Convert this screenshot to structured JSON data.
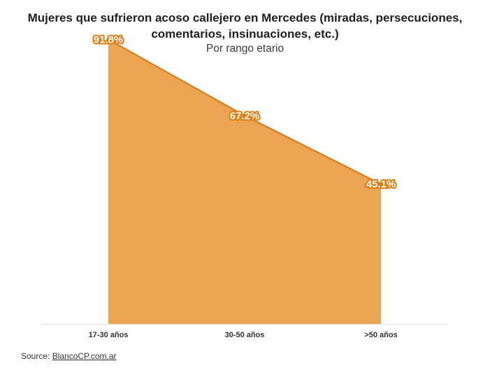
{
  "chart_data": {
    "type": "area",
    "title_line1": "Mujeres que sufrieron acoso callejero en Mercedes (miradas, persecuciones,",
    "title_line2": "comentarios, insinuaciones, etc.)",
    "subtitle": "Por rango etario",
    "categories": [
      "17-30 años",
      "30-50 años",
      ">50 años"
    ],
    "values": [
      91.8,
      67.2,
      45.1
    ],
    "value_labels": [
      "91.8%",
      "67.2%",
      "45.1%"
    ],
    "ylim": [
      0,
      100
    ],
    "grid": false,
    "fill_color": "#eba552",
    "line_color": "#e07b10"
  },
  "source": {
    "prefix": "Source: ",
    "link_text": "BlancoCP.com.ar"
  }
}
